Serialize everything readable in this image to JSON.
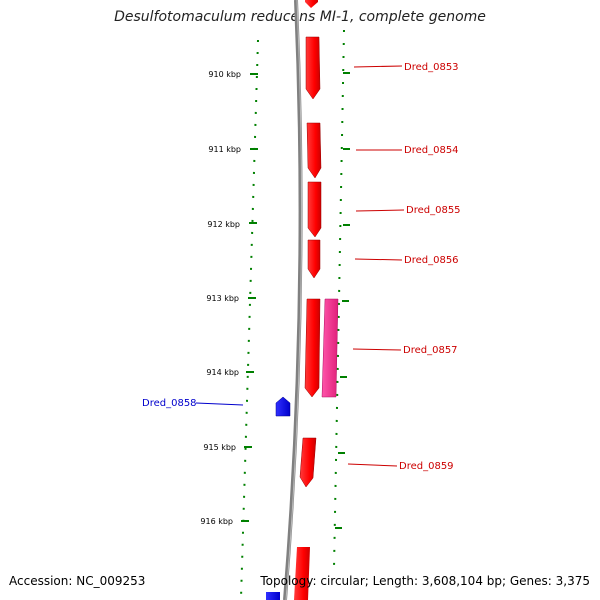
{
  "title": "Desulfotomaculum reducens MI-1, complete genome",
  "footer": {
    "accession": "Accession: NC_009253",
    "summary": "Topology: circular; Length: 3,608,104 bp; Genes: 3,375"
  },
  "colors": {
    "forward_gene": "#ff0000",
    "reverse_gene": "#0000ff",
    "other_feature": "#ff3399",
    "scale_ticks": "#008000",
    "backbone": "#808080",
    "forward_label": "#cc0000",
    "reverse_label": "#0000cc"
  },
  "scale": {
    "ticks": [
      {
        "label": "910 kbp"
      },
      {
        "label": "911 kbp"
      },
      {
        "label": "912 kbp"
      },
      {
        "label": "913 kbp"
      },
      {
        "label": "914 kbp"
      },
      {
        "label": "915 kbp"
      },
      {
        "label": "916 kbp"
      }
    ]
  },
  "genes": [
    {
      "label": "Dred_0853",
      "strand": "forward"
    },
    {
      "label": "Dred_0854",
      "strand": "forward"
    },
    {
      "label": "Dred_0855",
      "strand": "forward"
    },
    {
      "label": "Dred_0856",
      "strand": "forward"
    },
    {
      "label": "Dred_0857",
      "strand": "forward"
    },
    {
      "label": "Dred_0858",
      "strand": "reverse"
    },
    {
      "label": "Dred_0859",
      "strand": "forward"
    }
  ]
}
